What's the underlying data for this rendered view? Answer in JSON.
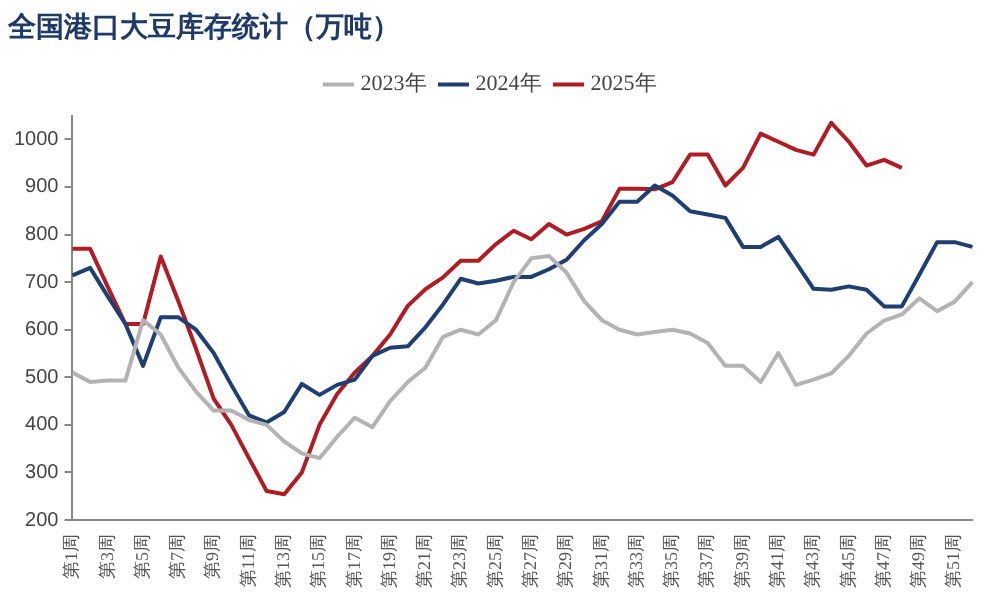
{
  "chart_data": {
    "type": "line",
    "title": "全国港口大豆库存统计（万吨）",
    "categories": [
      "第1周",
      null,
      "第3周",
      null,
      "第5周",
      null,
      "第7周",
      null,
      "第9周",
      null,
      "第11周",
      null,
      "第13周",
      null,
      "第15周",
      null,
      "第17周",
      null,
      "第19周",
      null,
      "第21周",
      null,
      "第23周",
      null,
      "第25周",
      null,
      "第27周",
      null,
      "第29周",
      null,
      "第31周",
      null,
      "第33周",
      null,
      "第35周",
      null,
      "第37周",
      null,
      "第39周",
      null,
      "第41周",
      null,
      "第43周",
      null,
      "第45周",
      null,
      "第47周",
      null,
      "第49周",
      null,
      "第51周",
      null
    ],
    "series": [
      {
        "name": "2023年",
        "color": "#b3b3b3",
        "values": [
          510,
          490,
          493,
          493,
          620,
          590,
          520,
          470,
          430,
          430,
          410,
          400,
          365,
          340,
          330,
          375,
          415,
          395,
          450,
          490,
          520,
          585,
          600,
          590,
          620,
          700,
          750,
          755,
          720,
          660,
          620,
          600,
          590,
          595,
          600,
          592,
          572,
          524,
          524,
          490,
          551,
          484,
          495,
          508,
          545,
          592,
          619,
          632,
          666,
          639,
          659,
          700
        ]
      },
      {
        "name": "2024年",
        "color": "#1f3f73",
        "values": [
          714,
          730,
          670,
          612,
          524,
          626,
          626,
          600,
          551,
          484,
          420,
          405,
          427,
          486,
          463,
          484,
          495,
          545,
          562,
          565,
          605,
          653,
          707,
          697,
          703,
          711,
          711,
          727,
          747,
          788,
          822,
          869,
          869,
          903,
          882,
          849,
          842,
          835,
          774,
          774,
          795,
          741,
          686,
          684,
          691,
          684,
          649,
          649,
          716,
          784,
          784,
          774
        ]
      },
      {
        "name": "2025年",
        "color": "#b01c24",
        "values": [
          770,
          770,
          690,
          612,
          612,
          754,
          660,
          560,
          455,
          400,
          330,
          261,
          254,
          300,
          400,
          465,
          510,
          545,
          590,
          650,
          685,
          710,
          745,
          745,
          780,
          808,
          790,
          822,
          800,
          812,
          828,
          896,
          896,
          895,
          910,
          968,
          968,
          903,
          940,
          1012,
          995,
          978,
          968,
          1035,
          995,
          945,
          957,
          940,
          null,
          null,
          null,
          null
        ]
      }
    ],
    "ylim": [
      200,
      1050
    ],
    "yticks": [
      200,
      300,
      400,
      500,
      600,
      700,
      800,
      900,
      1000
    ],
    "grid": false,
    "legend": "top",
    "marker": "none",
    "line_style": "solid"
  }
}
